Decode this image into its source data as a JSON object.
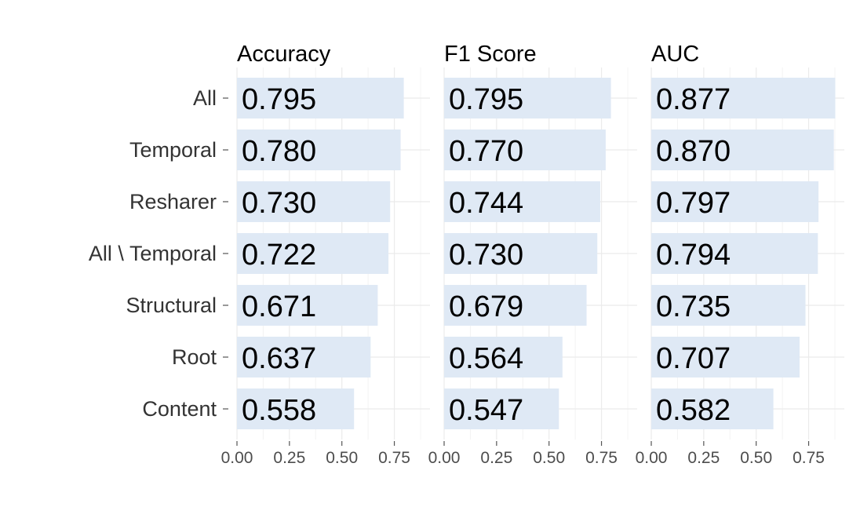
{
  "chart_data": {
    "type": "bar",
    "orientation": "horizontal",
    "categories": [
      "All",
      "Temporal",
      "Resharer",
      "All \\ Temporal",
      "Structural",
      "Root",
      "Content"
    ],
    "panels": [
      {
        "title": "Accuracy",
        "values": [
          0.795,
          0.78,
          0.73,
          0.722,
          0.671,
          0.637,
          0.558
        ],
        "labels": [
          "0.795",
          "0.780",
          "0.730",
          "0.722",
          "0.671",
          "0.637",
          "0.558"
        ]
      },
      {
        "title": "F1 Score",
        "values": [
          0.795,
          0.77,
          0.744,
          0.73,
          0.679,
          0.564,
          0.547
        ],
        "labels": [
          "0.795",
          "0.770",
          "0.744",
          "0.730",
          "0.679",
          "0.564",
          "0.547"
        ]
      },
      {
        "title": "AUC",
        "values": [
          0.877,
          0.87,
          0.797,
          0.794,
          0.735,
          0.707,
          0.582
        ],
        "labels": [
          "0.877",
          "0.870",
          "0.797",
          "0.794",
          "0.735",
          "0.707",
          "0.582"
        ]
      }
    ],
    "x_ticks": [
      0,
      0.25,
      0.5,
      0.75
    ],
    "x_tick_labels": [
      "0.00",
      "0.25",
      "0.50",
      "0.75"
    ],
    "xlim": [
      0,
      0.92
    ],
    "bar_color": "#dfe9f5",
    "grid": true,
    "legend": "none"
  }
}
